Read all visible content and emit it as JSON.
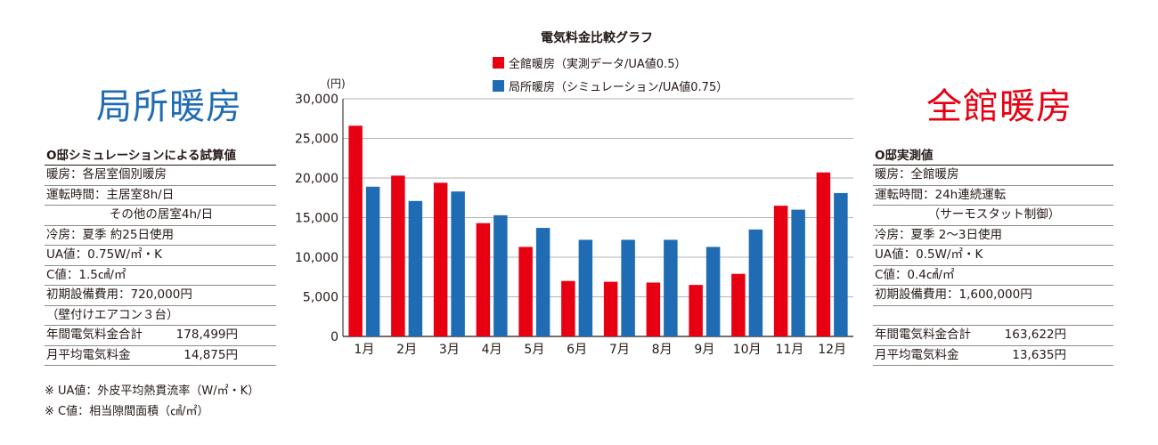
{
  "left_title": "局所暖房",
  "right_title": "全館暖房",
  "left_panel": {
    "heading": "O邸シミュレーションによる試算値",
    "rows": [
      "暖房：各居室個別暖房",
      "運転時間：主居室8h/日",
      "その他の居室4h/日",
      "冷房：夏季 約25日使用",
      "UA値：0.75W/㎡・K",
      "C値：1.5㎠/㎡",
      "初期設備費用：720,000円",
      "（壁付けエアコン３台）"
    ],
    "annual_label": "年間電気料金合計",
    "annual_value": "178,499円",
    "monthly_label": "月平均電気料金",
    "monthly_value": "14,875円"
  },
  "right_panel": {
    "heading": "O邸実測値",
    "rows": [
      "暖房：全館暖房",
      "運転時間：24h連続運転",
      "（サーモスタット制御）",
      "冷房：夏季 2〜3日使用",
      "UA値：0.5W/㎡・K",
      "C値：0.4㎠/㎡",
      "初期設備費用：1,600,000円"
    ],
    "annual_label": "年間電気料金合計",
    "annual_value": "163,622円",
    "monthly_label": "月平均電気料金",
    "monthly_value": "13,635円"
  },
  "notes": [
    "※ UA値：外皮平均熱貫流率（W/㎡・K）",
    "※ C値：相当隙間面積（㎠/㎡）"
  ],
  "chart_data": {
    "type": "bar",
    "title": "電気料金比較グラフ",
    "unit_label": "(円)",
    "categories": [
      "1月",
      "2月",
      "3月",
      "4月",
      "5月",
      "6月",
      "7月",
      "8月",
      "9月",
      "10月",
      "11月",
      "12月"
    ],
    "series": [
      {
        "name": "全館暖房（実測データ/UA値0.5）",
        "color": "#e60012",
        "values": [
          26600,
          20300,
          19400,
          14300,
          11300,
          7000,
          6900,
          6800,
          6500,
          7900,
          16500,
          20700
        ]
      },
      {
        "name": "局所暖房（シミュレーション/UA値0.75）",
        "color": "#1f6cb4",
        "values": [
          18900,
          17100,
          18300,
          15300,
          13700,
          12200,
          12200,
          12200,
          11300,
          13500,
          16000,
          18100
        ]
      }
    ],
    "ylim": [
      0,
      30000
    ],
    "yticks": [
      "0",
      "5,000",
      "10,000",
      "15,000",
      "20,000",
      "25,000",
      "30,000"
    ],
    "ytick_values": [
      0,
      5000,
      10000,
      15000,
      20000,
      25000,
      30000
    ],
    "grid": true,
    "legend_position": "top"
  }
}
